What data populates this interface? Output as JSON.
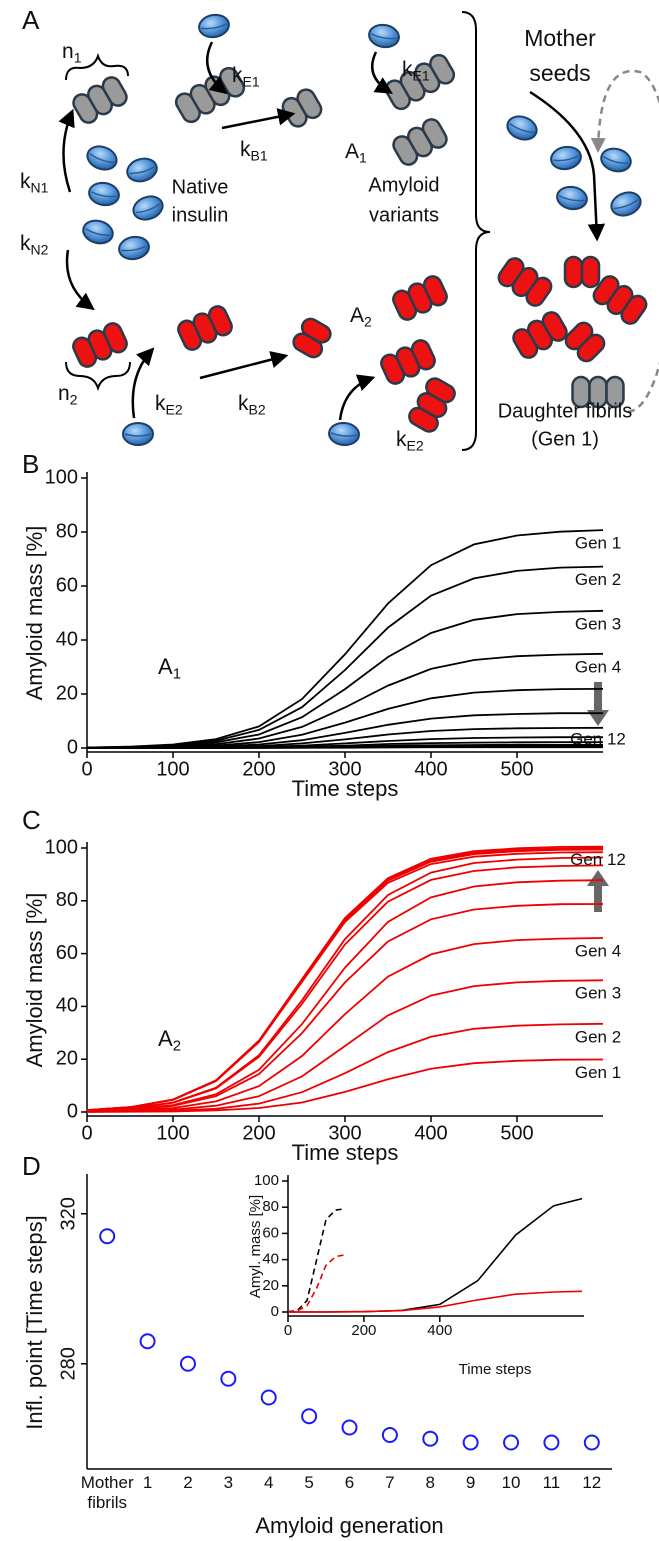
{
  "diagram": {
    "panel_label": "A",
    "labels": [
      {
        "base": "n",
        "sub": "1"
      },
      {
        "base": "k",
        "sub": "E1"
      },
      {
        "base": "k",
        "sub": "N1"
      },
      {
        "base": "k",
        "sub": "B1"
      },
      {
        "base": "A",
        "sub": "1"
      },
      {
        "base": "k",
        "sub": "E1"
      },
      {
        "base": "k",
        "sub": "N2"
      },
      {
        "base": "n",
        "sub": "2"
      },
      {
        "base": "k",
        "sub": "E2"
      },
      {
        "base": "k",
        "sub": "B2"
      },
      {
        "base": "A",
        "sub": "2"
      },
      {
        "base": "k",
        "sub": "E2"
      }
    ],
    "texts": [
      [
        "Native",
        "insulin"
      ],
      [
        "Amyloid",
        "variants"
      ],
      [
        "Mother",
        "seeds"
      ],
      [
        "Daughter fibrils",
        "(Gen 1)"
      ]
    ]
  },
  "chart_data": [
    {
      "panel_label": "B",
      "type": "line",
      "xlabel": "Time steps",
      "ylabel": "Amyloid mass [%]",
      "annotation": {
        "base": "A",
        "sub": "1"
      },
      "x": [
        0,
        50,
        100,
        150,
        200,
        250,
        300,
        350,
        400,
        450,
        500,
        550,
        600
      ],
      "xlim": [
        0,
        600
      ],
      "xticks": [
        0,
        100,
        200,
        300,
        400,
        500
      ],
      "ylim": [
        0,
        100
      ],
      "yticks": [
        0,
        20,
        40,
        60,
        80,
        100
      ],
      "series": [
        {
          "name": "Gen 1",
          "color": "#000000",
          "values": [
            0.2,
            0.5,
            1.3,
            3.3,
            8.0,
            18.1,
            34.7,
            53.5,
            67.7,
            75.4,
            78.7,
            80.1,
            80.7
          ]
        },
        {
          "name": "Gen 2",
          "color": "#000000",
          "values": [
            0.2,
            0.4,
            1.1,
            2.7,
            6.7,
            15.1,
            28.9,
            44.6,
            56.4,
            62.8,
            65.6,
            66.8,
            67.2
          ]
        },
        {
          "name": "Gen 3",
          "color": "#000000",
          "values": [
            0.1,
            0.3,
            0.8,
            2.1,
            5.0,
            11.4,
            21.8,
            33.7,
            42.6,
            47.5,
            49.6,
            50.4,
            50.8
          ]
        },
        {
          "name": "Gen 4",
          "color": "#000000",
          "values": [
            0.1,
            0.2,
            0.6,
            1.4,
            3.5,
            7.8,
            15.0,
            23.1,
            29.3,
            32.6,
            34.0,
            34.6,
            34.9
          ]
        },
        {
          "color": "#000000",
          "values": [
            0.1,
            0.1,
            0.3,
            0.9,
            2.2,
            4.9,
            9.4,
            14.5,
            18.4,
            20.5,
            21.4,
            21.8,
            21.9
          ]
        },
        {
          "color": "#000000",
          "values": [
            0,
            0.1,
            0.2,
            0.5,
            1.3,
            2.9,
            5.6,
            8.6,
            10.9,
            12.1,
            12.6,
            12.9,
            12.9
          ]
        },
        {
          "color": "#000000",
          "values": [
            0,
            0,
            0.1,
            0.3,
            0.7,
            1.7,
            3.2,
            5.0,
            6.3,
            7.0,
            7.3,
            7.4,
            7.5
          ]
        },
        {
          "color": "#000000",
          "values": [
            0,
            0,
            0.1,
            0.2,
            0.4,
            0.9,
            1.7,
            2.6,
            3.3,
            3.7,
            3.9,
            4.0,
            4.0
          ]
        },
        {
          "color": "#000000",
          "values": [
            0,
            0,
            0,
            0.1,
            0.2,
            0.5,
            0.9,
            1.5,
            1.8,
            2.0,
            2.1,
            2.2,
            2.2
          ]
        },
        {
          "color": "#000000",
          "values": [
            0,
            0,
            0,
            0,
            0.1,
            0.3,
            0.5,
            0.8,
            1.0,
            1.1,
            1.2,
            1.2,
            1.2
          ]
        },
        {
          "color": "#000000",
          "values": [
            0,
            0,
            0,
            0,
            0.1,
            0.1,
            0.3,
            0.4,
            0.5,
            0.6,
            0.6,
            0.6,
            0.6
          ]
        },
        {
          "name": "Gen 12",
          "color": "#000000",
          "values": [
            0,
            0,
            0,
            0,
            0,
            0.1,
            0.1,
            0.2,
            0.3,
            0.3,
            0.3,
            0.3,
            0.3
          ]
        }
      ]
    },
    {
      "panel_label": "C",
      "type": "line",
      "xlabel": "Time steps",
      "ylabel": "Amyloid mass [%]",
      "annotation": {
        "base": "A",
        "sub": "2"
      },
      "x": [
        0,
        50,
        100,
        150,
        200,
        250,
        300,
        350,
        400,
        450,
        500,
        550,
        600
      ],
      "xlim": [
        0,
        600
      ],
      "xticks": [
        0,
        100,
        200,
        300,
        400,
        500
      ],
      "ylim": [
        0,
        100
      ],
      "yticks": [
        0,
        20,
        40,
        60,
        80,
        100
      ],
      "series": [
        {
          "name": "Gen 1",
          "color": "#ee0000",
          "values": [
            0.0,
            0.1,
            0.2,
            0.6,
            1.5,
            3.6,
            7.6,
            12.4,
            16.4,
            18.5,
            19.4,
            19.8,
            19.9
          ]
        },
        {
          "name": "Gen 2",
          "color": "#ee0000",
          "values": [
            0.1,
            0.2,
            0.5,
            1.2,
            3.2,
            7.5,
            14.7,
            22.7,
            28.5,
            31.5,
            32.7,
            33.2,
            33.4
          ]
        },
        {
          "name": "Gen 3",
          "color": "#ee0000",
          "values": [
            0.1,
            0.3,
            0.9,
            2.4,
            6.0,
            13.5,
            25.0,
            36.6,
            44.1,
            47.7,
            49.1,
            49.7,
            49.9
          ]
        },
        {
          "name": "Gen 4",
          "color": "#ee0000",
          "values": [
            0.2,
            0.6,
            1.5,
            4.0,
            9.8,
            21.2,
            37.1,
            51.3,
            59.7,
            63.6,
            65.1,
            65.7,
            65.9
          ]
        },
        {
          "color": "#ee0000",
          "values": [
            0.3,
            0.9,
            2.3,
            6.0,
            14.4,
            29.9,
            49.1,
            64.6,
            73.0,
            76.7,
            78.1,
            78.7,
            78.8
          ]
        },
        {
          "color": "#ee0000",
          "values": [
            0.4,
            1.0,
            2.6,
            6.7,
            16.0,
            33.3,
            54.7,
            72.0,
            81.3,
            85.4,
            87.0,
            87.6,
            87.8
          ]
        },
        {
          "color": "#ee0000",
          "values": [
            0.5,
            1.3,
            3.5,
            8.9,
            20.9,
            41.0,
            63.5,
            79.7,
            87.9,
            91.3,
            92.7,
            93.2,
            93.4
          ]
        },
        {
          "color": "#ee0000",
          "values": [
            0.5,
            1.4,
            3.6,
            9.2,
            21.5,
            42.3,
            65.5,
            82.2,
            90.7,
            94.3,
            95.6,
            96.2,
            96.4
          ]
        },
        {
          "color": "#ee0000",
          "values": [
            0.7,
            1.8,
            4.6,
            11.7,
            26.5,
            49.3,
            72.0,
            86.8,
            93.9,
            96.7,
            97.8,
            98.3,
            98.4
          ]
        },
        {
          "color": "#ee0000",
          "values": [
            0.7,
            1.8,
            4.7,
            11.8,
            26.8,
            49.8,
            72.7,
            87.7,
            94.8,
            97.7,
            98.8,
            99.3,
            99.4
          ]
        },
        {
          "color": "#ee0000",
          "values": [
            0.7,
            1.8,
            4.7,
            11.9,
            26.9,
            50.0,
            73.1,
            88.1,
            95.3,
            98.2,
            99.3,
            99.8,
            99.9
          ]
        },
        {
          "name": "Gen 12",
          "color": "#ee0000",
          "values": [
            0.7,
            1.8,
            4.7,
            12.0,
            27.1,
            50.3,
            73.5,
            88.6,
            95.9,
            98.8,
            99.9,
            100.4,
            100.5
          ]
        }
      ]
    },
    {
      "panel_label": "D",
      "type": "scatter",
      "xlabel": "Amyloid generation",
      "ylabel": "Infl. point [Time steps]",
      "categories": [
        "Mother fibrils",
        "1",
        "2",
        "3",
        "4",
        "5",
        "6",
        "7",
        "8",
        "9",
        "10",
        "11",
        "12"
      ],
      "values": [
        314,
        286,
        280,
        276,
        271,
        266,
        263,
        261,
        260,
        259,
        259,
        259,
        259
      ],
      "color": "#1a1aff",
      "ylim": [
        253,
        329
      ],
      "yticks": [
        280,
        320
      ]
    },
    {
      "type": "line",
      "xlabel": "Time steps",
      "ylabel": "Amyl. mass [%]",
      "xlim": [
        0,
        780
      ],
      "xticks": [
        0,
        200,
        400
      ],
      "ylim": [
        0,
        100
      ],
      "yticks": [
        0,
        20,
        40,
        60,
        80,
        100
      ],
      "series": [
        {
          "color": "#000000",
          "dash": true,
          "x": [
            0,
            25,
            50,
            75,
            100,
            125,
            150
          ],
          "values": [
            0.2,
            1.2,
            8.7,
            39.5,
            70.3,
            77.8,
            78.8
          ]
        },
        {
          "color": "#ee0000",
          "dash": true,
          "x": [
            0,
            25,
            50,
            75,
            100,
            125,
            150
          ],
          "values": [
            0.1,
            0.9,
            4.8,
            18.0,
            35.6,
            42.2,
            43.7
          ]
        },
        {
          "color": "#000000",
          "x": [
            0,
            100,
            200,
            300,
            400,
            500,
            600,
            700,
            775
          ],
          "values": [
            0,
            0,
            0.2,
            1.2,
            5.8,
            23.9,
            58.8,
            81.1,
            86.6
          ]
        },
        {
          "color": "#ee0000",
          "x": [
            0,
            100,
            200,
            300,
            400,
            500,
            600,
            700,
            775
          ],
          "values": [
            0,
            0.1,
            0.3,
            1.1,
            3.9,
            9.2,
            13.6,
            15.3,
            15.8
          ]
        }
      ]
    }
  ]
}
